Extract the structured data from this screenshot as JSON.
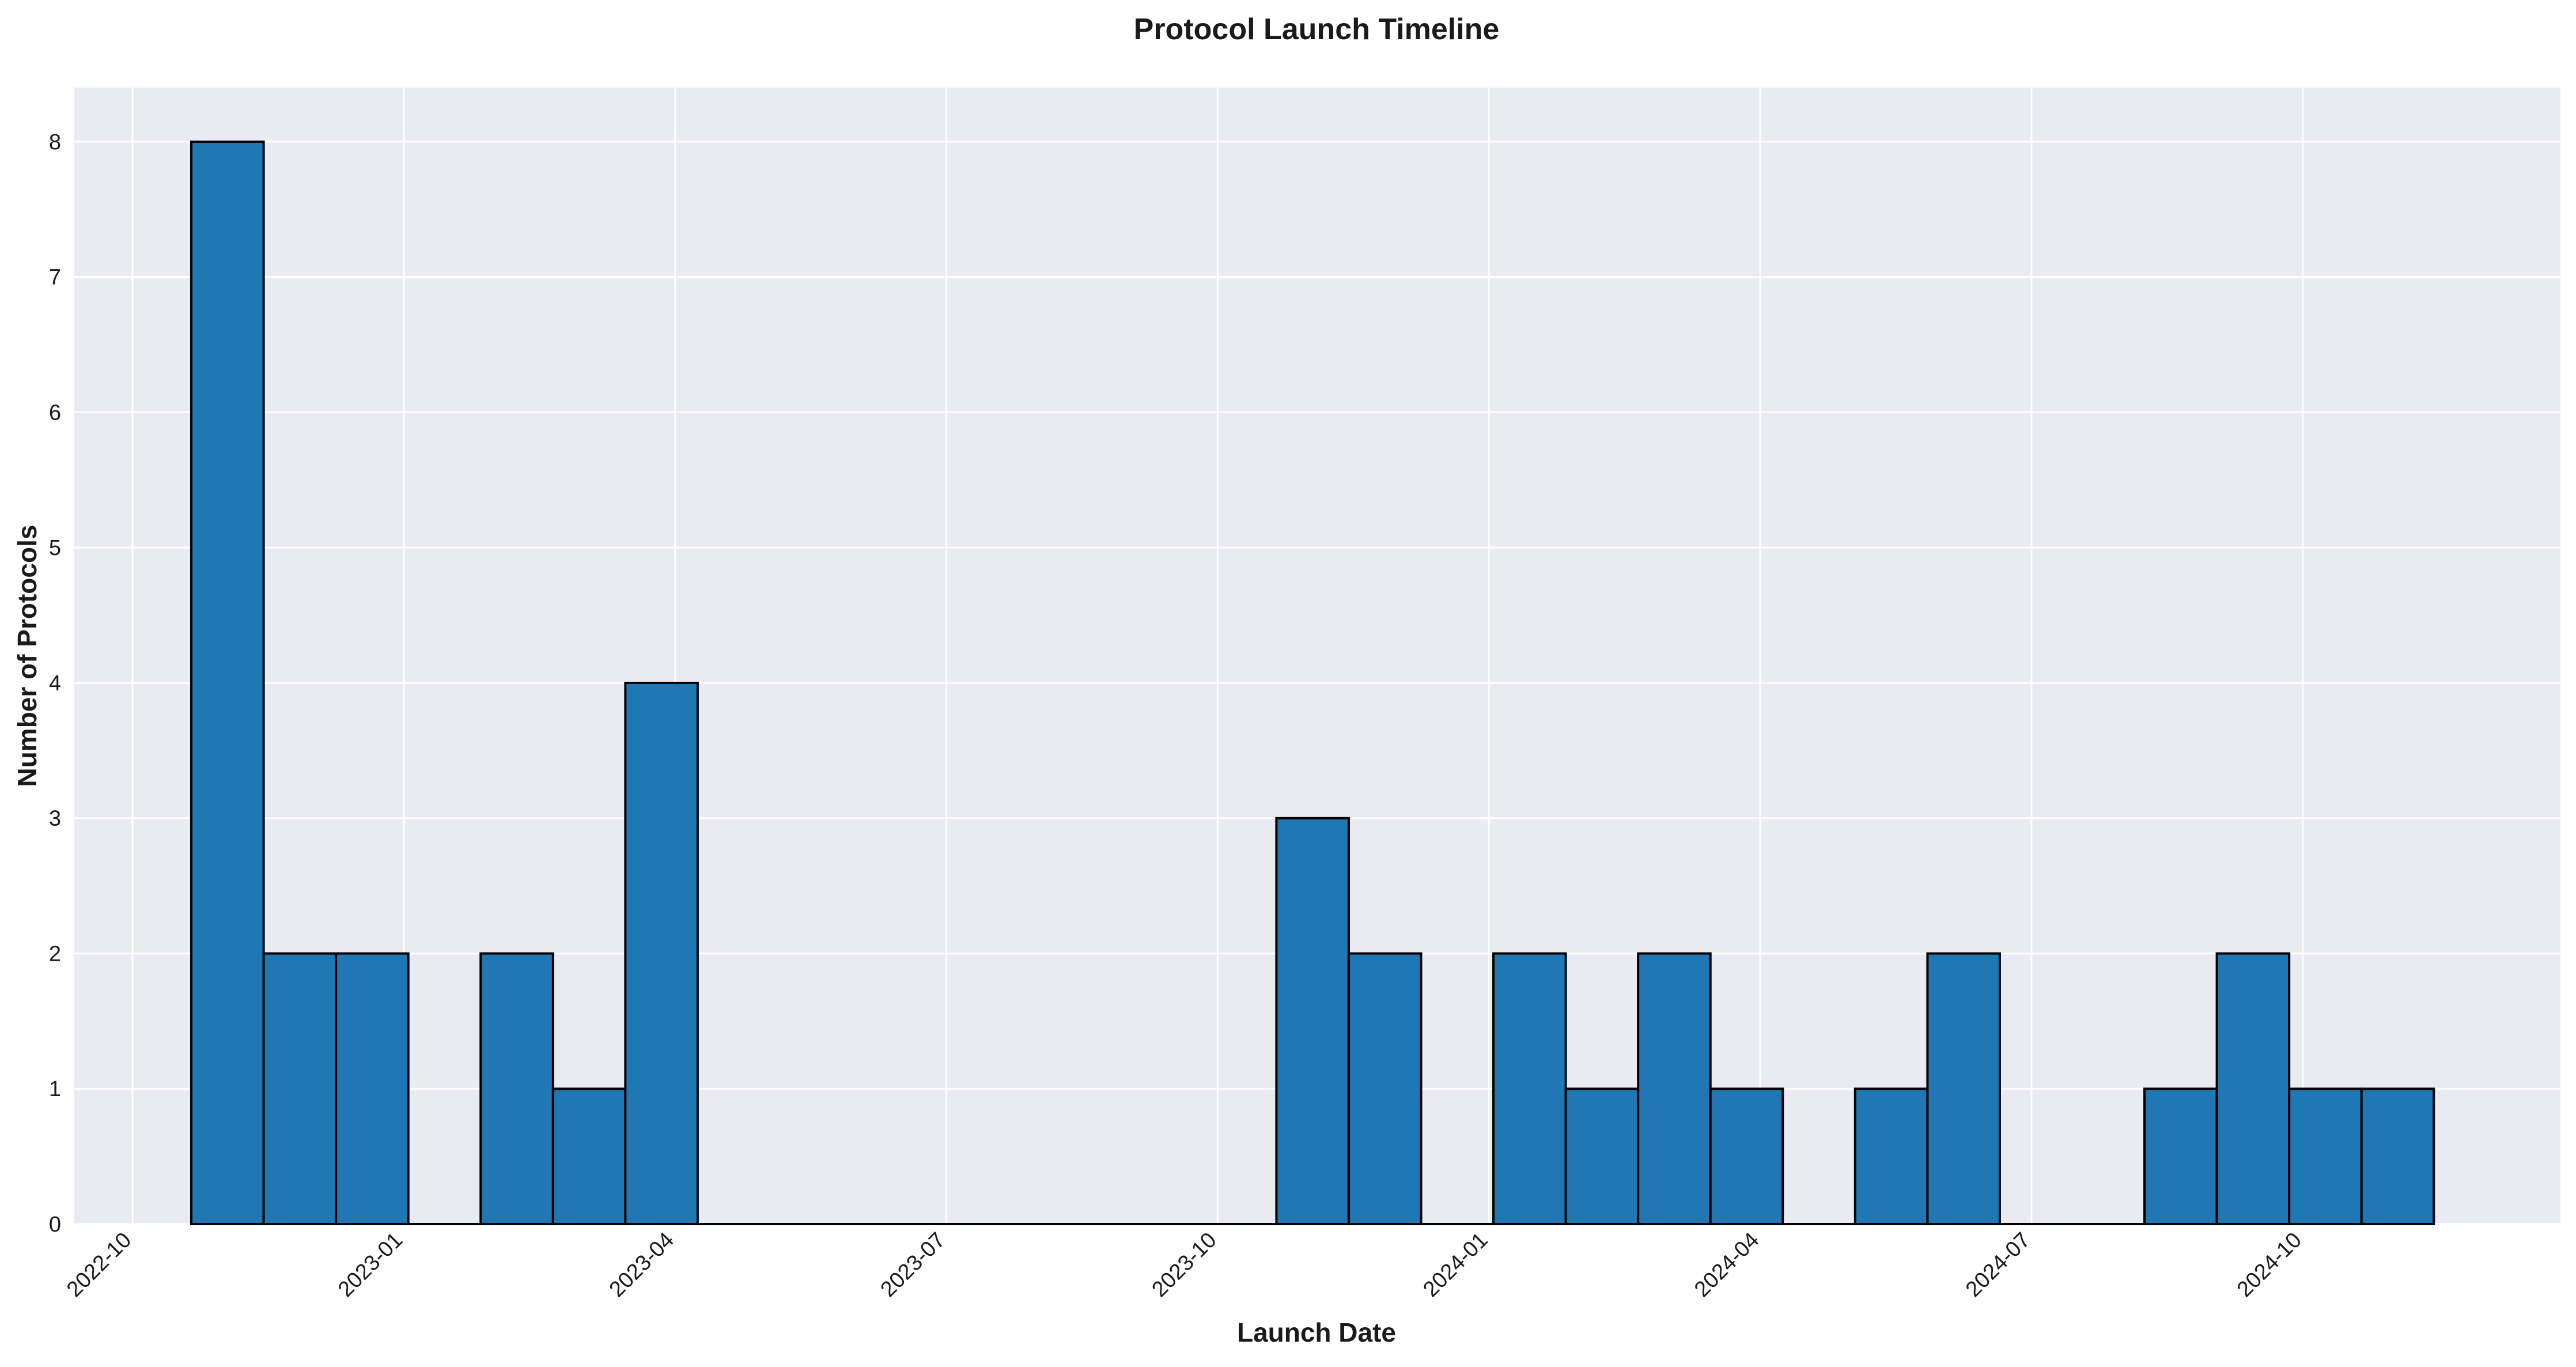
{
  "chart_data": {
    "type": "bar",
    "title": "Protocol Launch Timeline",
    "xlabel": "Launch Date",
    "ylabel": "Number of Protocols",
    "x_ticks": [
      "2022-10",
      "2023-01",
      "2023-04",
      "2023-07",
      "2023-10",
      "2024-01",
      "2024-04",
      "2024-07",
      "2024-10"
    ],
    "x_tick_months": [
      0,
      3,
      6,
      9,
      12,
      15,
      18,
      21,
      24
    ],
    "xlim_months": [
      -0.65,
      26.85
    ],
    "ylim": [
      0,
      8.4
    ],
    "y_ticks": [
      0,
      1,
      2,
      3,
      4,
      5,
      6,
      7,
      8
    ],
    "grid": true,
    "bin_width_months": 0.8,
    "bins_start_months": [
      0.65,
      1.45,
      2.25,
      3.05,
      3.85,
      4.65,
      5.45,
      6.25,
      7.05,
      7.85,
      8.65,
      9.45,
      10.25,
      11.05,
      11.85,
      12.65,
      13.45,
      14.25,
      15.05,
      15.85,
      16.65,
      17.45,
      18.25,
      19.05,
      19.85,
      20.65,
      21.45,
      22.25,
      23.05,
      23.85,
      24.65
    ],
    "values": [
      8,
      2,
      2,
      0,
      2,
      1,
      4,
      0,
      0,
      0,
      0,
      0,
      0,
      0,
      0,
      3,
      2,
      0,
      2,
      1,
      2,
      1,
      0,
      1,
      2,
      0,
      0,
      1,
      2,
      1,
      1
    ],
    "colors": {
      "bar": "#1f77b4",
      "edge": "#000000",
      "plot_background": "#eaeaf2",
      "grid": "#ffffff"
    }
  }
}
